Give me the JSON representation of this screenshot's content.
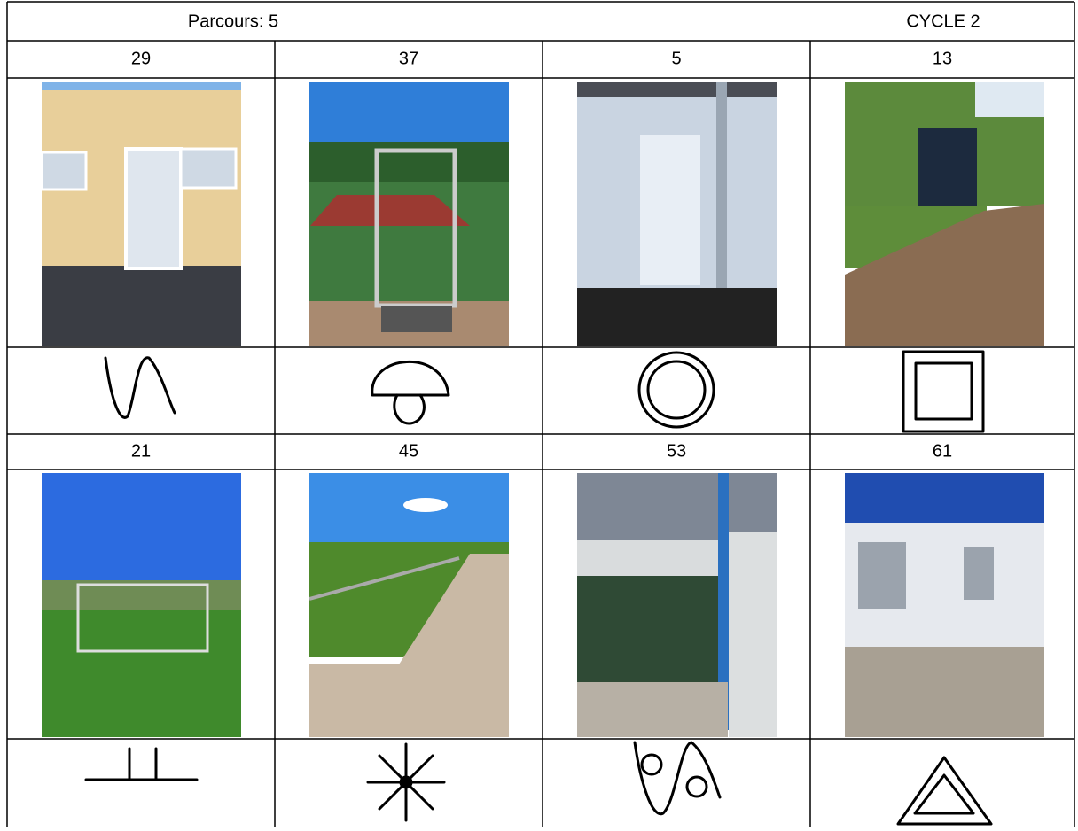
{
  "header": {
    "title": "Parcours:  5",
    "cycle": "CYCLE 2"
  },
  "table": {
    "rows": [
      [
        "29",
        "37",
        "5",
        "13"
      ],
      [
        "21",
        "45",
        "53",
        "61"
      ]
    ]
  }
}
